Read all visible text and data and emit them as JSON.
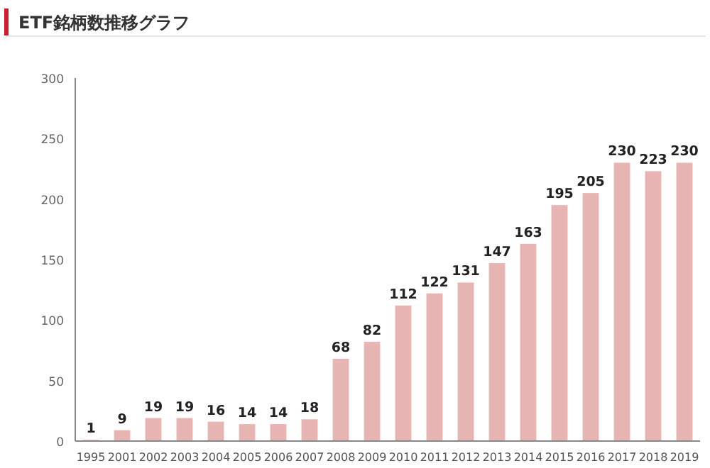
{
  "chart_data": {
    "type": "bar",
    "title": "ETF銘柄数推移グラフ",
    "categories": [
      "1995",
      "2001",
      "2002",
      "2003",
      "2004",
      "2005",
      "2006",
      "2007",
      "2008",
      "2009",
      "2010",
      "2011",
      "2012",
      "2013",
      "2014",
      "2015",
      "2016",
      "2017",
      "2018",
      "2019"
    ],
    "values": [
      1,
      9,
      19,
      19,
      16,
      14,
      14,
      18,
      68,
      82,
      112,
      122,
      131,
      147,
      163,
      195,
      205,
      230,
      223,
      230
    ],
    "color": "#e8b5b5",
    "ylim": [
      0,
      300
    ],
    "yticks": [
      0,
      50,
      100,
      150,
      200,
      250,
      300
    ],
    "grid": false,
    "data_labels": true
  }
}
